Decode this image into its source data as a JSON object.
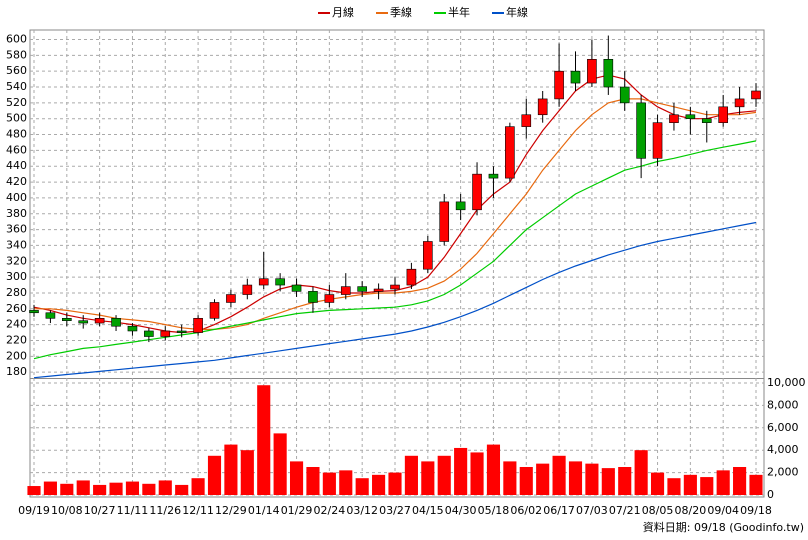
{
  "chart_data": {
    "type": "candlestick",
    "categories": [
      "09/19",
      null,
      "10/08",
      null,
      "10/27",
      null,
      "11/11",
      null,
      "11/26",
      null,
      "12/11",
      null,
      "12/29",
      null,
      "01/14",
      null,
      "01/29",
      null,
      "02/24",
      null,
      "03/12",
      null,
      "03/27",
      null,
      "04/15",
      null,
      "04/30",
      null,
      "05/18",
      null,
      "06/02",
      null,
      "06/17",
      null,
      "07/03",
      null,
      "07/21",
      null,
      "08/05",
      null,
      "08/20",
      null,
      "09/04",
      null,
      "09/18"
    ],
    "open": [
      258,
      255,
      248,
      245,
      242,
      248,
      238,
      232,
      225,
      232,
      230,
      248,
      268,
      278,
      290,
      298,
      290,
      282,
      268,
      278,
      288,
      282,
      285,
      290,
      310,
      345,
      395,
      385,
      430,
      425,
      490,
      505,
      525,
      560,
      545,
      575,
      540,
      520,
      450,
      495,
      505,
      500,
      495,
      515,
      525
    ],
    "high": [
      265,
      258,
      255,
      252,
      255,
      252,
      242,
      236,
      238,
      240,
      252,
      272,
      284,
      298,
      332,
      305,
      298,
      288,
      290,
      305,
      295,
      292,
      300,
      318,
      352,
      405,
      405,
      445,
      440,
      495,
      525,
      535,
      595,
      585,
      600,
      605,
      560,
      530,
      505,
      520,
      515,
      510,
      530,
      540,
      545
    ],
    "low": [
      250,
      242,
      238,
      235,
      238,
      232,
      226,
      218,
      220,
      224,
      226,
      245,
      262,
      272,
      285,
      282,
      275,
      255,
      262,
      272,
      275,
      272,
      278,
      285,
      305,
      340,
      372,
      378,
      400,
      420,
      475,
      495,
      515,
      535,
      540,
      530,
      510,
      425,
      440,
      485,
      480,
      470,
      490,
      505,
      515
    ],
    "close": [
      255,
      248,
      245,
      242,
      248,
      238,
      232,
      225,
      232,
      230,
      248,
      268,
      278,
      290,
      298,
      290,
      282,
      268,
      278,
      288,
      282,
      285,
      290,
      310,
      345,
      395,
      385,
      430,
      425,
      490,
      505,
      525,
      560,
      545,
      575,
      540,
      520,
      450,
      495,
      505,
      500,
      495,
      515,
      525,
      535
    ],
    "up_color": "#ff0000",
    "down_color": "#00a000",
    "series": [
      {
        "name": "月線",
        "color": "#cc0000",
        "values": [
          262,
          258,
          252,
          248,
          245,
          243,
          240,
          236,
          232,
          230,
          232,
          240,
          250,
          262,
          275,
          285,
          290,
          288,
          283,
          280,
          280,
          282,
          283,
          288,
          300,
          325,
          355,
          385,
          405,
          420,
          455,
          485,
          510,
          535,
          550,
          555,
          550,
          530,
          515,
          505,
          500,
          500,
          505,
          508,
          510
        ]
      },
      {
        "name": "季線",
        "color": "#e86a10",
        "values": [
          260,
          260,
          258,
          255,
          252,
          248,
          246,
          244,
          240,
          236,
          234,
          234,
          236,
          240,
          248,
          255,
          262,
          268,
          272,
          275,
          278,
          280,
          280,
          282,
          286,
          295,
          310,
          330,
          355,
          380,
          405,
          435,
          460,
          485,
          505,
          520,
          525,
          525,
          520,
          515,
          510,
          505,
          505,
          505,
          508
        ]
      },
      {
        "name": "半年",
        "color": "#00cc00",
        "values": [
          197,
          202,
          206,
          210,
          212,
          215,
          218,
          221,
          224,
          227,
          230,
          234,
          238,
          242,
          246,
          250,
          254,
          256,
          258,
          259,
          260,
          261,
          262,
          265,
          270,
          278,
          290,
          305,
          320,
          340,
          360,
          375,
          390,
          405,
          415,
          425,
          435,
          440,
          446,
          450,
          455,
          460,
          464,
          468,
          472
        ]
      },
      {
        "name": "年線",
        "color": "#0050c8",
        "values": [
          173,
          175,
          177,
          179,
          181,
          183,
          185,
          187,
          189,
          191,
          193,
          195,
          198,
          201,
          204,
          207,
          210,
          213,
          216,
          219,
          222,
          225,
          228,
          232,
          237,
          243,
          250,
          258,
          267,
          277,
          287,
          297,
          306,
          314,
          321,
          328,
          334,
          340,
          345,
          349,
          353,
          357,
          361,
          365,
          369
        ]
      }
    ],
    "ylim": [
      172,
      612
    ],
    "yticks": [
      180,
      200,
      220,
      240,
      260,
      280,
      300,
      320,
      340,
      360,
      380,
      400,
      420,
      440,
      460,
      480,
      500,
      520,
      540,
      560,
      580,
      600
    ],
    "volume": {
      "color": "#ff0000",
      "values": [
        800,
        1200,
        1000,
        1300,
        900,
        1100,
        1200,
        1000,
        1300,
        900,
        1500,
        3500,
        4500,
        4000,
        9800,
        5500,
        3000,
        2500,
        2000,
        2200,
        1500,
        1800,
        2000,
        3500,
        3000,
        3500,
        4200,
        3800,
        4500,
        3000,
        2500,
        2800,
        3500,
        3000,
        2800,
        2400,
        2500,
        4000,
        2000,
        1500,
        1800,
        1600,
        2200,
        2500,
        1800
      ],
      "ylim": [
        0,
        10400
      ],
      "yticks": [
        0,
        {
          "value": 2000,
          "label": "2,000"
        },
        {
          "value": 4000,
          "label": "4,000"
        },
        {
          "value": 6000,
          "label": "6,000"
        },
        {
          "value": 8000,
          "label": "8,000"
        },
        {
          "value": 10000,
          "label": "10,000"
        }
      ]
    },
    "grid": true,
    "note": "資料日期: 09/18 (Goodinfo.tw)"
  }
}
